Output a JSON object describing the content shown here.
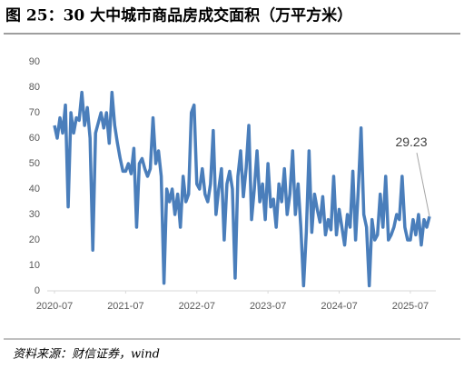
{
  "chart_data": {
    "type": "line",
    "title": "图 25：30 大中城市商品房成交面积（万平方米）",
    "source": "资料来源：财信证券，wind",
    "color": "#4a7ebb",
    "values": [
      65,
      60,
      68,
      62,
      73,
      33,
      70,
      62,
      68,
      67,
      78,
      65,
      72,
      60,
      16,
      62,
      66,
      70,
      64,
      70,
      58,
      78,
      65,
      58,
      52,
      47,
      47,
      50,
      46,
      56,
      25,
      50,
      52,
      48,
      45,
      48,
      68,
      50,
      55,
      45,
      3,
      40,
      35,
      40,
      30,
      38,
      25,
      45,
      35,
      38,
      70,
      73,
      42,
      40,
      48,
      38,
      35,
      42,
      63,
      30,
      40,
      48,
      20,
      42,
      47,
      40,
      5,
      45,
      55,
      37,
      48,
      65,
      28,
      40,
      55,
      35,
      42,
      28,
      50,
      33,
      36,
      25,
      42,
      35,
      48,
      30,
      38,
      55,
      30,
      42,
      25,
      2,
      23,
      55,
      23,
      38,
      32,
      27,
      37,
      22,
      28,
      24,
      45,
      22,
      32,
      25,
      18,
      30,
      25,
      47,
      20,
      40,
      64,
      30,
      25,
      2,
      28,
      20,
      22,
      38,
      25,
      45,
      20,
      22,
      25,
      30,
      28,
      45,
      25,
      20,
      20,
      28,
      22,
      30,
      18,
      28,
      25,
      29.23
    ],
    "value_labels": [
      null,
      null,
      null,
      null,
      null,
      null,
      null,
      null,
      null,
      null,
      null,
      null,
      null,
      null,
      null,
      null,
      null,
      null,
      null,
      null,
      null,
      null,
      null,
      null,
      null,
      null,
      null,
      null,
      null,
      null,
      null,
      null,
      null,
      null,
      null,
      null,
      null,
      null,
      null,
      null,
      null,
      null,
      null,
      null,
      null,
      null,
      null,
      null,
      null,
      null,
      null,
      null,
      null,
      null,
      null,
      null,
      null,
      null,
      null,
      null,
      null,
      null,
      null,
      null,
      null,
      null,
      null,
      null,
      null,
      null,
      null,
      null,
      null,
      null,
      null,
      null,
      null,
      null,
      null,
      null,
      null,
      null,
      null,
      null,
      null,
      null,
      null,
      null,
      null,
      null,
      null,
      null,
      null,
      null,
      null,
      null,
      null,
      null,
      null,
      null,
      null,
      null,
      null,
      null,
      null,
      null,
      null,
      null,
      null,
      null,
      null,
      null,
      null,
      null,
      null,
      null,
      null,
      null,
      null,
      null,
      null,
      null,
      null,
      null,
      null,
      null,
      null,
      null,
      null,
      null,
      null,
      null,
      null,
      null,
      null,
      null,
      null,
      "29.23"
    ],
    "xlim": [
      0,
      137
    ],
    "xticks": [
      {
        "value": 0,
        "label": "2020-07"
      },
      {
        "value": 26,
        "label": "2021-07"
      },
      {
        "value": 52,
        "label": "2022-07"
      },
      {
        "value": 78,
        "label": "2023-07"
      },
      {
        "value": 104,
        "label": "2024-07"
      },
      {
        "value": 130,
        "label": "2025-07"
      }
    ],
    "ylim": [
      0,
      90
    ],
    "yticks": [
      0,
      10,
      20,
      30,
      40,
      50,
      60,
      70,
      80,
      90
    ]
  }
}
